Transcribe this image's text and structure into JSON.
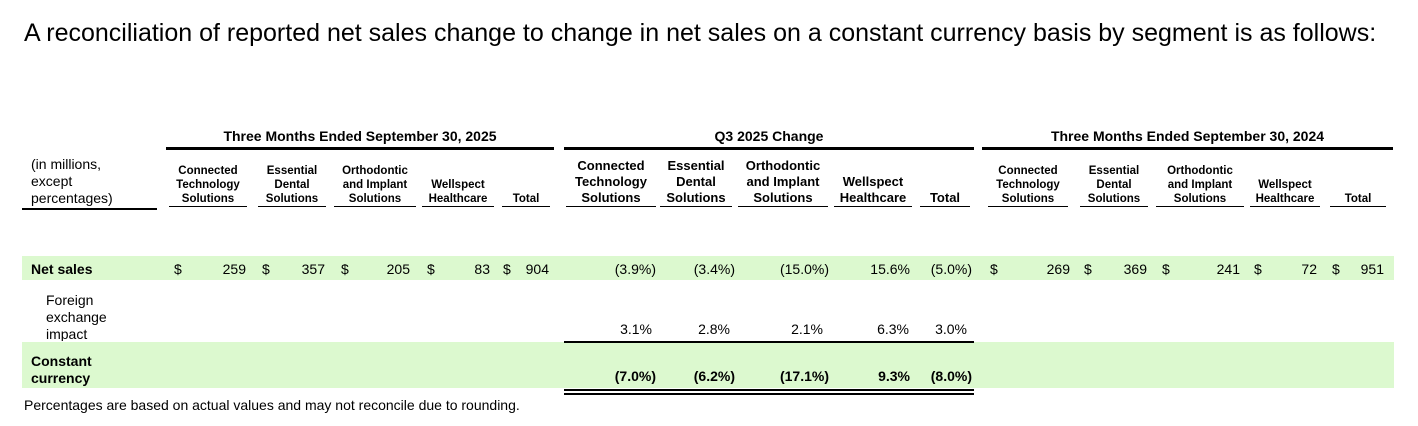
{
  "intro": "A reconciliation of reported net sales change to change in net sales on a constant currency basis by segment is as follows:",
  "units_label": "(in millions, except percentages)",
  "groups": [
    "Three Months Ended September 30, 2025",
    "Q3 2025 Change",
    "Three Months Ended September 30, 2024"
  ],
  "columns": [
    "Connected Technology Solutions",
    "Essential Dental Solutions",
    "Orthodontic and Implant Solutions",
    "Wellspect Healthcare",
    "Total"
  ],
  "rows": {
    "net_sales": {
      "label": "Net sales",
      "q3_2025": [
        "259",
        "357",
        "205",
        "83",
        "904"
      ],
      "change": [
        "(3.9%)",
        "(3.4%)",
        "(15.0%)",
        "15.6%",
        "(5.0%)"
      ],
      "q3_2024": [
        "269",
        "369",
        "241",
        "72",
        "951"
      ]
    },
    "fx": {
      "label": "Foreign exchange impact",
      "change": [
        "3.1%",
        "2.8%",
        "2.1%",
        "6.3%",
        "3.0%"
      ]
    },
    "constant": {
      "label": "Constant currency",
      "change": [
        "(7.0%)",
        "(6.2%)",
        "(17.1%)",
        "9.3%",
        "(8.0%)"
      ]
    }
  },
  "currency_symbol": "$",
  "footnote": "Percentages are based on actual values and may not reconcile due to rounding.",
  "colors": {
    "highlight_row": "#dcf9cf"
  }
}
